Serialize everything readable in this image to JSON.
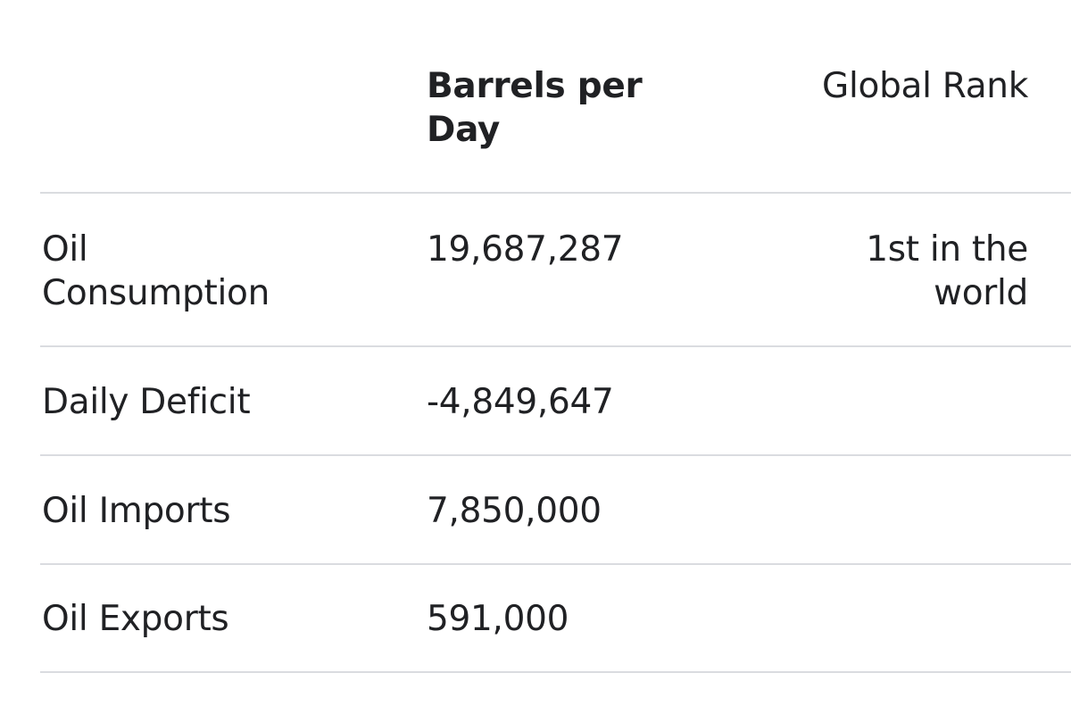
{
  "table": {
    "headers": {
      "metric": "",
      "barrels_per_day": "Barrels per Day",
      "global_rank": "Global Rank"
    },
    "rows": [
      {
        "metric": "Oil Consumption",
        "barrels_per_day": "19,687,287",
        "global_rank": "1st in the world"
      },
      {
        "metric": "Daily Deficit",
        "barrels_per_day": "-4,849,647",
        "global_rank": ""
      },
      {
        "metric": "Oil Imports",
        "barrels_per_day": "7,850,000",
        "global_rank": ""
      },
      {
        "metric": "Oil Exports",
        "barrels_per_day": "591,000",
        "global_rank": ""
      }
    ]
  }
}
